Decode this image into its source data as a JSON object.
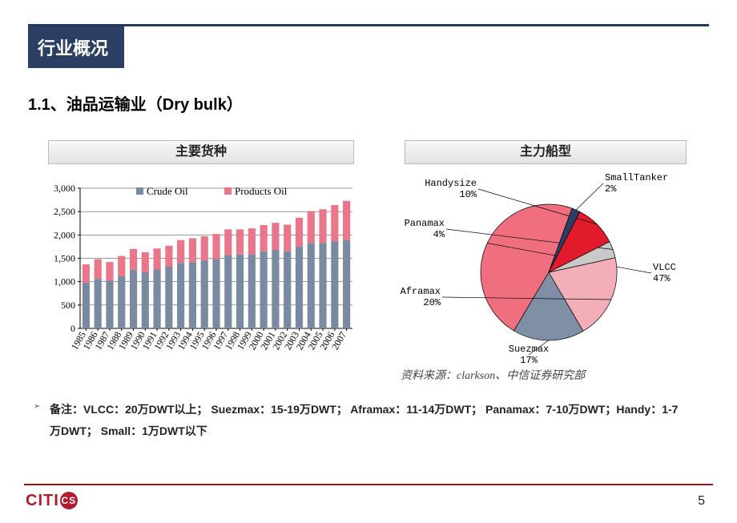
{
  "header": {
    "tag": "行业概况"
  },
  "subtitle": "1.1、油品运输业（Dry bulk）",
  "left_panel": {
    "title": "主要货种",
    "chart": {
      "type": "stacked-bar",
      "ylim": [
        0,
        3000
      ],
      "ytick_step": 500,
      "yticks": [
        "0",
        "500",
        "1,000",
        "1,500",
        "2,000",
        "2,500",
        "3,000"
      ],
      "years": [
        "1985",
        "1986",
        "1987",
        "1988",
        "1989",
        "1990",
        "1991",
        "1992",
        "1993",
        "1994",
        "1995",
        "1996",
        "1997",
        "1998",
        "1999",
        "2000",
        "2001",
        "2002",
        "2003",
        "2004",
        "2005",
        "2006",
        "2007"
      ],
      "series": [
        {
          "name": "Crude Oil",
          "color": "#7a8aa0",
          "values": [
            980,
            1060,
            1020,
            1120,
            1250,
            1200,
            1260,
            1320,
            1400,
            1420,
            1450,
            1490,
            1560,
            1580,
            1580,
            1650,
            1680,
            1650,
            1750,
            1830,
            1830,
            1860,
            1890
          ]
        },
        {
          "name": "Products Oil",
          "color": "#e9768a",
          "values": [
            390,
            420,
            400,
            430,
            450,
            430,
            450,
            450,
            490,
            510,
            520,
            530,
            560,
            540,
            560,
            560,
            580,
            570,
            620,
            680,
            720,
            780,
            840
          ]
        }
      ],
      "grid_color": "#000",
      "bg": "#ffffff"
    }
  },
  "right_panel": {
    "title": "主力船型",
    "chart": {
      "type": "pie",
      "slices": [
        {
          "label": "VLCC",
          "pct": 47,
          "color": "#ef6f7e"
        },
        {
          "label": "Suezmax",
          "pct": 17,
          "color": "#7e8fa6"
        },
        {
          "label": "Aframax",
          "pct": 20,
          "color": "#f3aeb8"
        },
        {
          "label": "Panamax",
          "pct": 4,
          "color": "#c9c9c9"
        },
        {
          "label": "Handysize",
          "pct": 10,
          "color": "#e11b2c"
        },
        {
          "label": "SmallTanker",
          "pct": 2,
          "color": "#2a3f63"
        }
      ],
      "start_angle_deg": 70,
      "radius": 85,
      "stroke": "#000"
    }
  },
  "source": "资料来源：clarkson、中信证券研究部",
  "note": "备注：VLCC：20万DWT以上； Suezmax：15-19万DWT； Aframax：11-14万DWT； Panamax：7-10万DWT；Handy：1-7万DWT； Small：1万DWT以下",
  "footer": {
    "logo_main": "CITI",
    "logo_badge": "CS",
    "page": "5"
  }
}
